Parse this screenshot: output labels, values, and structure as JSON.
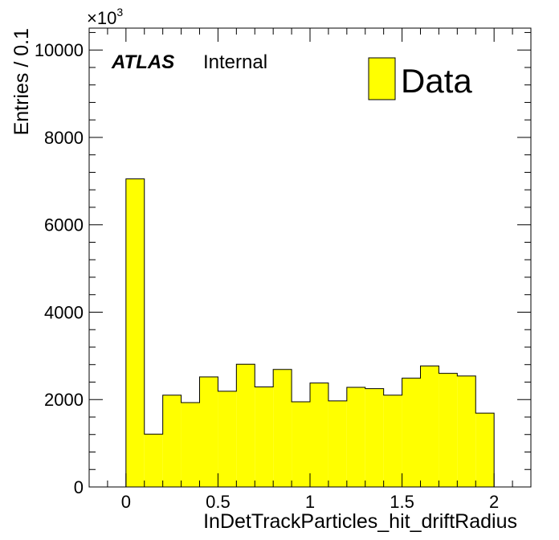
{
  "chart_data": {
    "type": "bar",
    "xlabel": "InDetTrackParticles_hit_driftRadius",
    "ylabel": "Entries / 0.1",
    "y_scale_label": "×10",
    "y_scale_exponent": "3",
    "xlim": [
      -0.2,
      2.2
    ],
    "ylim": [
      0,
      10500
    ],
    "x_ticks": [
      0,
      0.5,
      1,
      1.5,
      2
    ],
    "x_tick_labels": [
      "0",
      "0.5",
      "1",
      "1.5",
      "2"
    ],
    "y_ticks": [
      0,
      2000,
      4000,
      6000,
      8000,
      10000
    ],
    "y_tick_labels": [
      "0",
      "2000",
      "4000",
      "6000",
      "8000",
      "10000"
    ],
    "bin_width": 0.1,
    "bin_edges": [
      0,
      0.1,
      0.2,
      0.3,
      0.4,
      0.5,
      0.6,
      0.7,
      0.8,
      0.9,
      1.0,
      1.1,
      1.2,
      1.3,
      1.4,
      1.5,
      1.6,
      1.7,
      1.8,
      1.9,
      2.0
    ],
    "series": [
      {
        "name": "Data",
        "color": "#ffff00",
        "values": [
          7050,
          1210,
          2100,
          1930,
          2520,
          2190,
          2810,
          2290,
          2690,
          1950,
          2380,
          1970,
          2280,
          2250,
          2100,
          2490,
          2770,
          2600,
          2540,
          1690
        ]
      }
    ],
    "legend": {
      "position": "top-right",
      "entries": [
        "Data"
      ]
    },
    "annotation": {
      "atlas": "ATLAS",
      "status": "Internal"
    },
    "grid": false
  }
}
